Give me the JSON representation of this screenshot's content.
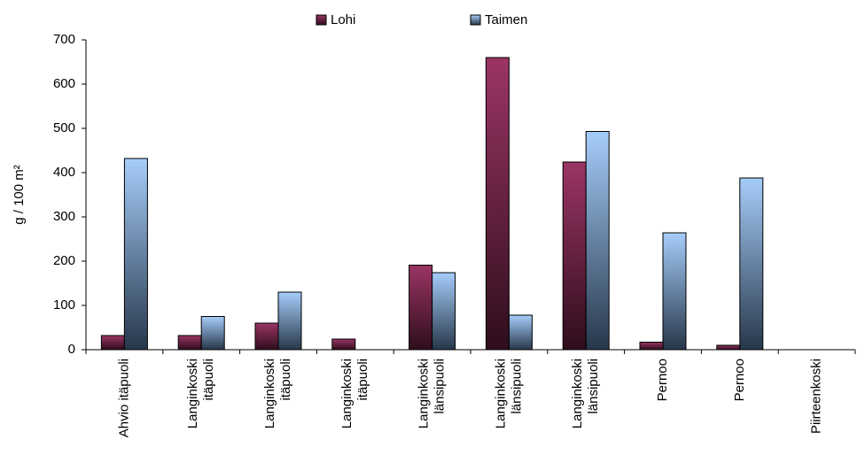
{
  "chart_data": {
    "type": "bar",
    "y_label": "g / 100 m²",
    "categories": [
      "Ahvio itäpuoli",
      "Langinkoski\nitäpuoli",
      "Langinkoski\nitäpuoli",
      "Langinkoski\nitäpuoli",
      "Langinkoski\nlänsipuoli",
      "Langinkoski\nlänsipuoli",
      "Langinkoski\nlänsipuoli",
      "Pernoo",
      "Pernoo",
      "Piirteenkoski"
    ],
    "series": [
      {
        "name": "Lohi",
        "color": "#9b3565",
        "values": [
          32,
          32,
          60,
          24,
          191,
          660,
          424,
          17,
          10,
          null
        ]
      },
      {
        "name": "Taimen",
        "color": "#a6cdfa",
        "values": [
          432,
          75,
          130,
          null,
          174,
          78,
          493,
          264,
          388,
          null
        ]
      }
    ],
    "ylim": [
      0,
      700
    ],
    "yticks": [
      0,
      100,
      200,
      300,
      400,
      500,
      600,
      700
    ],
    "legend": "top"
  }
}
